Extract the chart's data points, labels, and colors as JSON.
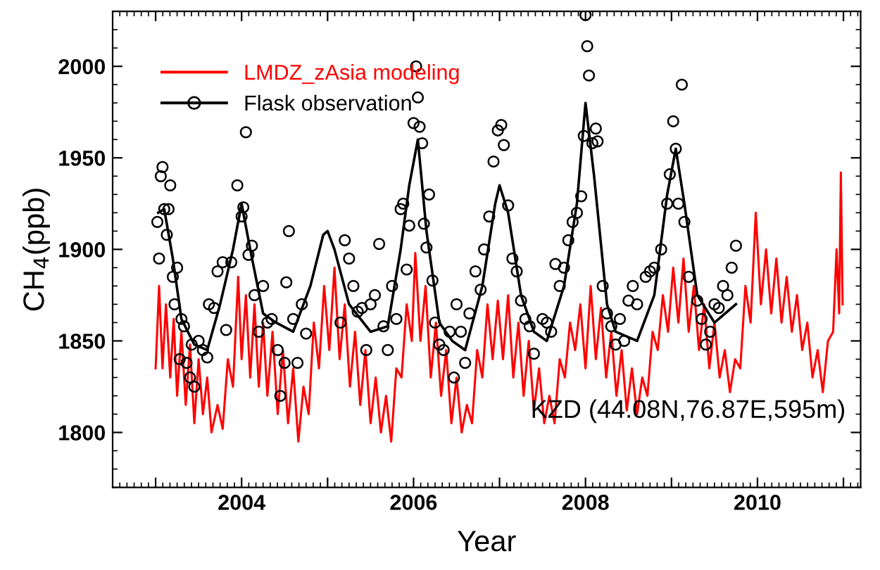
{
  "chart_data": {
    "type": "line",
    "xlabel": "Year",
    "ylabel": "CH$_{4}$(ppb)",
    "xlim": [
      2002.5,
      2011.2
    ],
    "ylim": [
      1770,
      2030
    ],
    "xticks": [
      {
        "value": 2003,
        "label": null
      },
      2004,
      {
        "value": 2005,
        "label": null
      },
      2006,
      {
        "value": 2007,
        "label": null
      },
      2008,
      {
        "value": 2009,
        "label": null
      },
      2010,
      {
        "value": 2011,
        "label": null
      }
    ],
    "yticks": [
      1800,
      1850,
      1900,
      1950,
      2000
    ],
    "grid": false,
    "legend": "top left",
    "annotations": [
      "KZD (44.08N,76.87E,595m)"
    ],
    "series": [
      {
        "name": "LMDZ_zAsia modeling",
        "color": "#ff0000",
        "marker": "none",
        "x": [
          2003.0,
          2003.04,
          2003.08,
          2003.12,
          2003.17,
          2003.21,
          2003.25,
          2003.3,
          2003.35,
          2003.4,
          2003.45,
          2003.5,
          2003.55,
          2003.6,
          2003.65,
          2003.72,
          2003.78,
          2003.84,
          2003.9,
          2003.96,
          2004.0,
          2004.05,
          2004.1,
          2004.15,
          2004.2,
          2004.25,
          2004.3,
          2004.36,
          2004.42,
          2004.48,
          2004.54,
          2004.6,
          2004.66,
          2004.72,
          2004.78,
          2004.84,
          2004.9,
          2004.96,
          2005.02,
          2005.08,
          2005.14,
          2005.2,
          2005.26,
          2005.32,
          2005.38,
          2005.44,
          2005.5,
          2005.56,
          2005.62,
          2005.68,
          2005.74,
          2005.8,
          2005.86,
          2005.92,
          2005.98,
          2006.02,
          2006.08,
          2006.14,
          2006.2,
          2006.26,
          2006.32,
          2006.38,
          2006.44,
          2006.5,
          2006.56,
          2006.62,
          2006.68,
          2006.74,
          2006.8,
          2006.86,
          2006.92,
          2006.98,
          2007.04,
          2007.1,
          2007.16,
          2007.22,
          2007.28,
          2007.34,
          2007.4,
          2007.46,
          2007.52,
          2007.58,
          2007.64,
          2007.7,
          2007.76,
          2007.82,
          2007.88,
          2007.94,
          2008.0,
          2008.06,
          2008.12,
          2008.18,
          2008.24,
          2008.3,
          2008.36,
          2008.42,
          2008.48,
          2008.54,
          2008.6,
          2008.66,
          2008.72,
          2008.78,
          2008.84,
          2008.9,
          2008.96,
          2009.02,
          2009.08,
          2009.14,
          2009.2,
          2009.26,
          2009.32,
          2009.38,
          2009.44,
          2009.5,
          2009.56,
          2009.62,
          2009.68,
          2009.74,
          2009.8,
          2009.86,
          2009.92,
          2009.98,
          2010.04,
          2010.1,
          2010.16,
          2010.22,
          2010.28,
          2010.34,
          2010.4,
          2010.46,
          2010.52,
          2010.58,
          2010.64,
          2010.7,
          2010.76,
          2010.82,
          2010.88,
          2010.92,
          2010.95,
          2010.97,
          2010.99
        ],
        "values": [
          1835,
          1880,
          1835,
          1870,
          1830,
          1862,
          1820,
          1855,
          1815,
          1848,
          1805,
          1840,
          1810,
          1830,
          1800,
          1815,
          1802,
          1840,
          1825,
          1885,
          1840,
          1875,
          1830,
          1870,
          1825,
          1860,
          1820,
          1855,
          1810,
          1845,
          1805,
          1835,
          1795,
          1825,
          1810,
          1860,
          1835,
          1880,
          1845,
          1890,
          1840,
          1870,
          1825,
          1855,
          1815,
          1845,
          1805,
          1830,
          1800,
          1820,
          1795,
          1835,
          1830,
          1870,
          1850,
          1898,
          1850,
          1880,
          1830,
          1860,
          1820,
          1845,
          1805,
          1830,
          1800,
          1815,
          1805,
          1845,
          1830,
          1870,
          1840,
          1872,
          1840,
          1875,
          1830,
          1860,
          1820,
          1850,
          1812,
          1835,
          1805,
          1820,
          1805,
          1840,
          1830,
          1860,
          1845,
          1870,
          1835,
          1880,
          1840,
          1868,
          1830,
          1855,
          1820,
          1845,
          1812,
          1835,
          1810,
          1830,
          1820,
          1855,
          1845,
          1875,
          1855,
          1890,
          1860,
          1895,
          1855,
          1880,
          1845,
          1870,
          1835,
          1860,
          1830,
          1845,
          1822,
          1840,
          1835,
          1880,
          1860,
          1920,
          1870,
          1900,
          1865,
          1895,
          1860,
          1885,
          1855,
          1875,
          1845,
          1860,
          1830,
          1845,
          1822,
          1850,
          1855,
          1900,
          1865,
          1942,
          1870
        ]
      },
      {
        "name": "Flask observation",
        "color": "#000000",
        "marker": "none",
        "x": [
          2003.03,
          2003.1,
          2003.2,
          2003.3,
          2003.45,
          2003.6,
          2003.75,
          2003.9,
          2004.0,
          2004.1,
          2004.25,
          2004.4,
          2004.6,
          2004.8,
          2004.95,
          2005.0,
          2005.08,
          2005.25,
          2005.5,
          2005.7,
          2005.85,
          2005.95,
          2006.05,
          2006.15,
          2006.3,
          2006.45,
          2006.6,
          2006.8,
          2006.95,
          2007.0,
          2007.1,
          2007.25,
          2007.4,
          2007.55,
          2007.75,
          2007.9,
          2008.0,
          2008.1,
          2008.25,
          2008.35,
          2008.6,
          2008.8,
          2008.95,
          2009.05,
          2009.15,
          2009.3,
          2009.5,
          2009.75
        ],
        "values": [
          1920,
          1922,
          1895,
          1862,
          1848,
          1845,
          1870,
          1900,
          1925,
          1900,
          1865,
          1860,
          1855,
          1880,
          1908,
          1910,
          1900,
          1870,
          1855,
          1858,
          1900,
          1935,
          1960,
          1910,
          1860,
          1850,
          1845,
          1880,
          1925,
          1935,
          1920,
          1875,
          1855,
          1850,
          1880,
          1925,
          1980,
          1940,
          1870,
          1855,
          1850,
          1875,
          1930,
          1955,
          1925,
          1875,
          1860,
          1870
        ]
      },
      {
        "type": "scatter",
        "color": "#000000",
        "marker": "circle",
        "x": [
          2003.02,
          2003.04,
          2003.06,
          2003.08,
          2003.1,
          2003.13,
          2003.15,
          2003.17,
          2003.2,
          2003.22,
          2003.25,
          2003.28,
          2003.3,
          2003.33,
          2003.36,
          2003.4,
          2003.42,
          2003.45,
          2003.5,
          2003.55,
          2003.6,
          2003.62,
          2003.68,
          2003.72,
          2003.78,
          2003.82,
          2003.88,
          2003.95,
          2004.0,
          2004.02,
          2004.05,
          2004.08,
          2004.12,
          2004.15,
          2004.2,
          2004.25,
          2004.3,
          2004.35,
          2004.42,
          2004.45,
          2004.5,
          2004.52,
          2004.55,
          2004.6,
          2004.65,
          2004.7,
          2004.75,
          2005.15,
          2005.2,
          2005.25,
          2005.3,
          2005.35,
          2005.4,
          2005.45,
          2005.5,
          2005.55,
          2005.6,
          2005.65,
          2005.7,
          2005.75,
          2005.8,
          2005.85,
          2005.88,
          2005.92,
          2005.95,
          2006.0,
          2006.03,
          2006.05,
          2006.07,
          2006.1,
          2006.12,
          2006.15,
          2006.18,
          2006.22,
          2006.25,
          2006.3,
          2006.35,
          2006.42,
          2006.47,
          2006.5,
          2006.55,
          2006.6,
          2006.65,
          2006.72,
          2006.78,
          2006.82,
          2006.88,
          2006.93,
          2006.98,
          2007.02,
          2007.05,
          2007.1,
          2007.15,
          2007.2,
          2007.25,
          2007.3,
          2007.35,
          2007.4,
          2007.5,
          2007.55,
          2007.6,
          2007.65,
          2007.7,
          2007.75,
          2007.8,
          2007.85,
          2007.9,
          2007.95,
          2007.98,
          2008.0,
          2008.02,
          2008.04,
          2008.08,
          2008.12,
          2008.14,
          2008.2,
          2008.25,
          2008.3,
          2008.35,
          2008.4,
          2008.45,
          2008.5,
          2008.55,
          2008.6,
          2008.7,
          2008.75,
          2008.8,
          2008.88,
          2008.95,
          2008.98,
          2009.02,
          2009.05,
          2009.08,
          2009.12,
          2009.15,
          2009.2,
          2009.3,
          2009.35,
          2009.4,
          2009.45,
          2009.5,
          2009.55,
          2009.6,
          2009.65,
          2009.7,
          2009.75
        ],
        "values": [
          1915,
          1895,
          1940,
          1945,
          1922,
          1908,
          1922,
          1935,
          1885,
          1870,
          1890,
          1840,
          1862,
          1858,
          1838,
          1830,
          1848,
          1825,
          1850,
          1845,
          1841,
          1870,
          1868,
          1888,
          1893,
          1856,
          1893,
          1935,
          1918,
          1923,
          1964,
          1897,
          1902,
          1875,
          1855,
          1880,
          1860,
          1862,
          1845,
          1820,
          1838,
          1882,
          1910,
          1862,
          1838,
          1870,
          1854,
          1860,
          1905,
          1895,
          1880,
          1866,
          1868,
          1845,
          1870,
          1875,
          1903,
          1858,
          1845,
          1880,
          1862,
          1922,
          1925,
          1889,
          1913,
          1969,
          2000,
          1983,
          1967,
          1958,
          1914,
          1901,
          1930,
          1883,
          1860,
          1848,
          1845,
          1855,
          1830,
          1870,
          1855,
          1838,
          1865,
          1888,
          1878,
          1900,
          1918,
          1948,
          1965,
          1968,
          1957,
          1924,
          1895,
          1888,
          1872,
          1862,
          1858,
          1843,
          1862,
          1860,
          1855,
          1892,
          1880,
          1890,
          1905,
          1915,
          1920,
          1929,
          1962,
          2028,
          2011,
          1995,
          1958,
          1966,
          1959,
          1880,
          1865,
          1858,
          1848,
          1862,
          1850,
          1872,
          1880,
          1870,
          1885,
          1888,
          1890,
          1900,
          1925,
          1941,
          1970,
          1955,
          1925,
          1990,
          1915,
          1885,
          1872,
          1862,
          1848,
          1855,
          1870,
          1868,
          1880,
          1875,
          1890,
          1902
        ]
      }
    ]
  }
}
